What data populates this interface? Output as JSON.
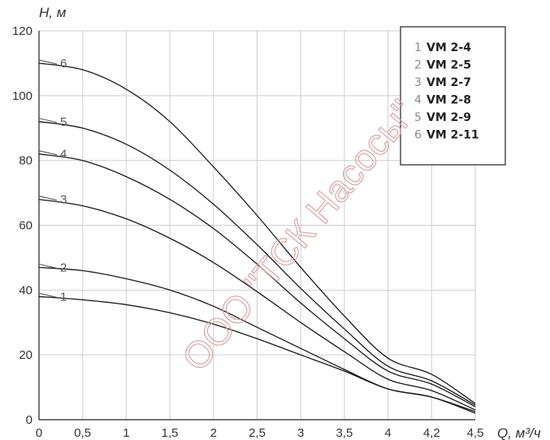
{
  "chart_data": {
    "type": "line",
    "xlabel": "Q, м³/ч",
    "ylabel": "H, м",
    "x_tick_labels": [
      "0",
      "0,5",
      "1",
      "1,5",
      "2",
      "2,5",
      "3",
      "3,5",
      "4",
      "4,2",
      "4,5"
    ],
    "y_tick_labels": [
      "0",
      "20",
      "40",
      "60",
      "80",
      "100",
      "120"
    ],
    "ylim": [
      0,
      120
    ],
    "grid": true,
    "legend_position": "top-right",
    "series": [
      {
        "number": "1",
        "name": "VM 2-4",
        "x": [
          0,
          0.5,
          1,
          1.5,
          2,
          2.5,
          3,
          3.5,
          4,
          4.2,
          4.5
        ],
        "values": [
          38,
          37,
          35.5,
          33,
          29.5,
          25,
          20,
          15,
          9.5,
          7,
          2
        ]
      },
      {
        "number": "2",
        "name": "VM 2-5",
        "x": [
          0,
          0.5,
          1,
          1.5,
          2,
          2.5,
          3,
          3.5,
          4,
          4.2,
          4.5
        ],
        "values": [
          47,
          46,
          43.5,
          40,
          35,
          28.5,
          22,
          15.5,
          9.5,
          7,
          2.5
        ]
      },
      {
        "number": "3",
        "name": "VM 2-7",
        "x": [
          0,
          0.5,
          1,
          1.5,
          2,
          2.5,
          3,
          3.5,
          4,
          4.2,
          4.5
        ],
        "values": [
          68,
          66,
          62,
          56,
          48.5,
          39.5,
          30,
          21,
          12.5,
          9,
          3
        ]
      },
      {
        "number": "4",
        "name": "VM 2-8",
        "x": [
          0,
          0.5,
          1,
          1.5,
          2,
          2.5,
          3,
          3.5,
          4,
          4.2,
          4.5
        ],
        "values": [
          82,
          80,
          75,
          68,
          59,
          48,
          36,
          25,
          15,
          11,
          4
        ]
      },
      {
        "number": "5",
        "name": "VM 2-9",
        "x": [
          0,
          0.5,
          1,
          1.5,
          2,
          2.5,
          3,
          3.5,
          4,
          4.2,
          4.5
        ],
        "values": [
          92,
          90,
          85,
          77,
          66.5,
          54,
          40.5,
          28,
          16.5,
          12,
          4.5
        ]
      },
      {
        "number": "6",
        "name": "VM 2-11",
        "x": [
          0,
          0.5,
          1,
          1.5,
          2,
          2.5,
          3,
          3.5,
          4,
          4.2,
          4.5
        ],
        "values": [
          110,
          108,
          102,
          92,
          78,
          63,
          47,
          32,
          19,
          14,
          5
        ]
      }
    ],
    "colors": {
      "grid": "#cfcfcf",
      "curve": "#1a1a1a",
      "frame": "#222222"
    }
  },
  "watermark": "ООО \"ТСК Насосы\""
}
